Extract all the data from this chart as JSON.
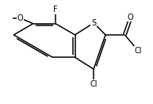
{
  "bg_color": "#ffffff",
  "bond_color": "#000000",
  "bond_lw": 1.1,
  "font_size": 7.0,
  "figsize": [
    1.93,
    1.31
  ],
  "dpi": 100,
  "xlim": [
    -0.2,
    3.9
  ],
  "ylim": [
    -0.4,
    2.9
  ]
}
